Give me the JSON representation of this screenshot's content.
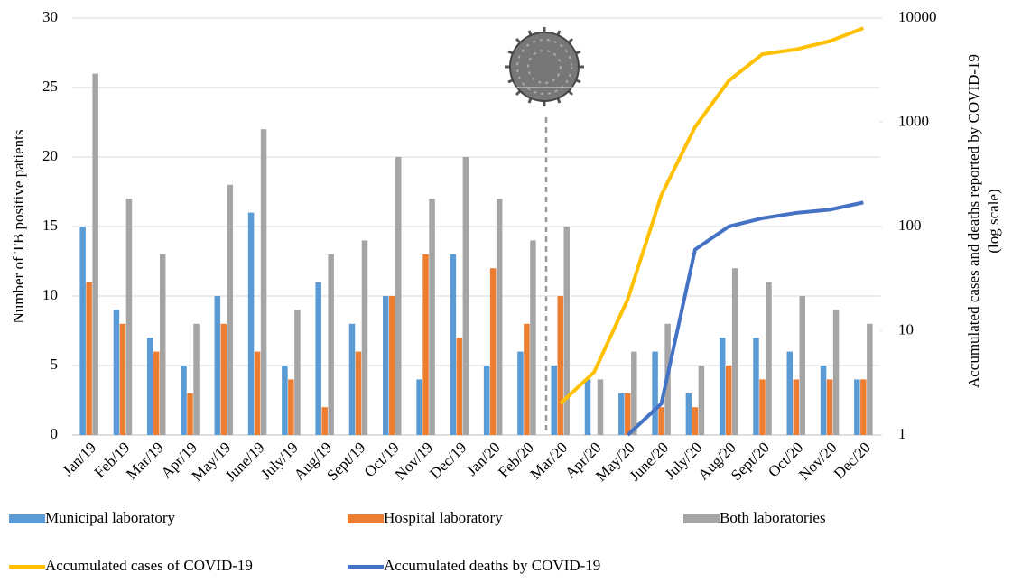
{
  "chart_data": {
    "type": "bar",
    "ylabel": "Number of TB positive patients",
    "y2label": [
      "Accumulated cases and deaths reported by COVID-19",
      "(log scale)"
    ],
    "categories": [
      "Jan/19",
      "Feb/19",
      "Mar/19",
      "Apr/19",
      "May/19",
      "June/19",
      "July/19",
      "Aug/19",
      "Sept/19",
      "Oct/19",
      "Nov/19",
      "Dec/19",
      "Jan/20",
      "Feb/20",
      "Mar/20",
      "Apr/20",
      "May/20",
      "June/20",
      "July/20",
      "Aug/20",
      "Sept/20",
      "Oct/20",
      "Nov/20",
      "Dec/20"
    ],
    "ylim": [
      0,
      30
    ],
    "yticks": [
      0,
      5,
      10,
      15,
      20,
      25,
      30
    ],
    "y2lim": [
      1,
      10000
    ],
    "y2ticks": [
      1,
      10,
      100,
      1000,
      10000
    ],
    "y2scale": "log",
    "grid": true,
    "series": [
      {
        "name": "Municipal laboratory",
        "type": "bar",
        "color": "#5b9bd5",
        "values": [
          15,
          9,
          7,
          5,
          10,
          16,
          5,
          11,
          8,
          10,
          4,
          13,
          5,
          6,
          5,
          4,
          3,
          6,
          3,
          7,
          7,
          6,
          5,
          4
        ]
      },
      {
        "name": "Hospital laboratory",
        "type": "bar",
        "color": "#ed7d31",
        "values": [
          11,
          8,
          6,
          3,
          8,
          6,
          4,
          2,
          6,
          10,
          13,
          7,
          12,
          8,
          10,
          0,
          3,
          2,
          2,
          5,
          4,
          4,
          4,
          4
        ]
      },
      {
        "name": "Both laboratories",
        "type": "bar",
        "color": "#a5a5a5",
        "values": [
          26,
          17,
          13,
          8,
          18,
          22,
          9,
          13,
          14,
          20,
          17,
          20,
          17,
          14,
          15,
          4,
          6,
          8,
          5,
          12,
          11,
          10,
          9,
          8
        ]
      },
      {
        "name": "Accumulated cases of COVID-19",
        "type": "line",
        "axis": "y2",
        "color": "#ffc000",
        "values": [
          null,
          null,
          null,
          null,
          null,
          null,
          null,
          null,
          null,
          null,
          null,
          null,
          null,
          null,
          2,
          4,
          20,
          200,
          900,
          2500,
          4500,
          5000,
          6000,
          8000
        ]
      },
      {
        "name": "Accumulated deaths by COVID-19",
        "type": "line",
        "axis": "y2",
        "color": "#4472c4",
        "values": [
          null,
          null,
          null,
          null,
          null,
          null,
          null,
          null,
          null,
          null,
          null,
          null,
          null,
          null,
          null,
          null,
          1,
          2,
          60,
          100,
          120,
          135,
          145,
          170
        ]
      }
    ]
  }
}
